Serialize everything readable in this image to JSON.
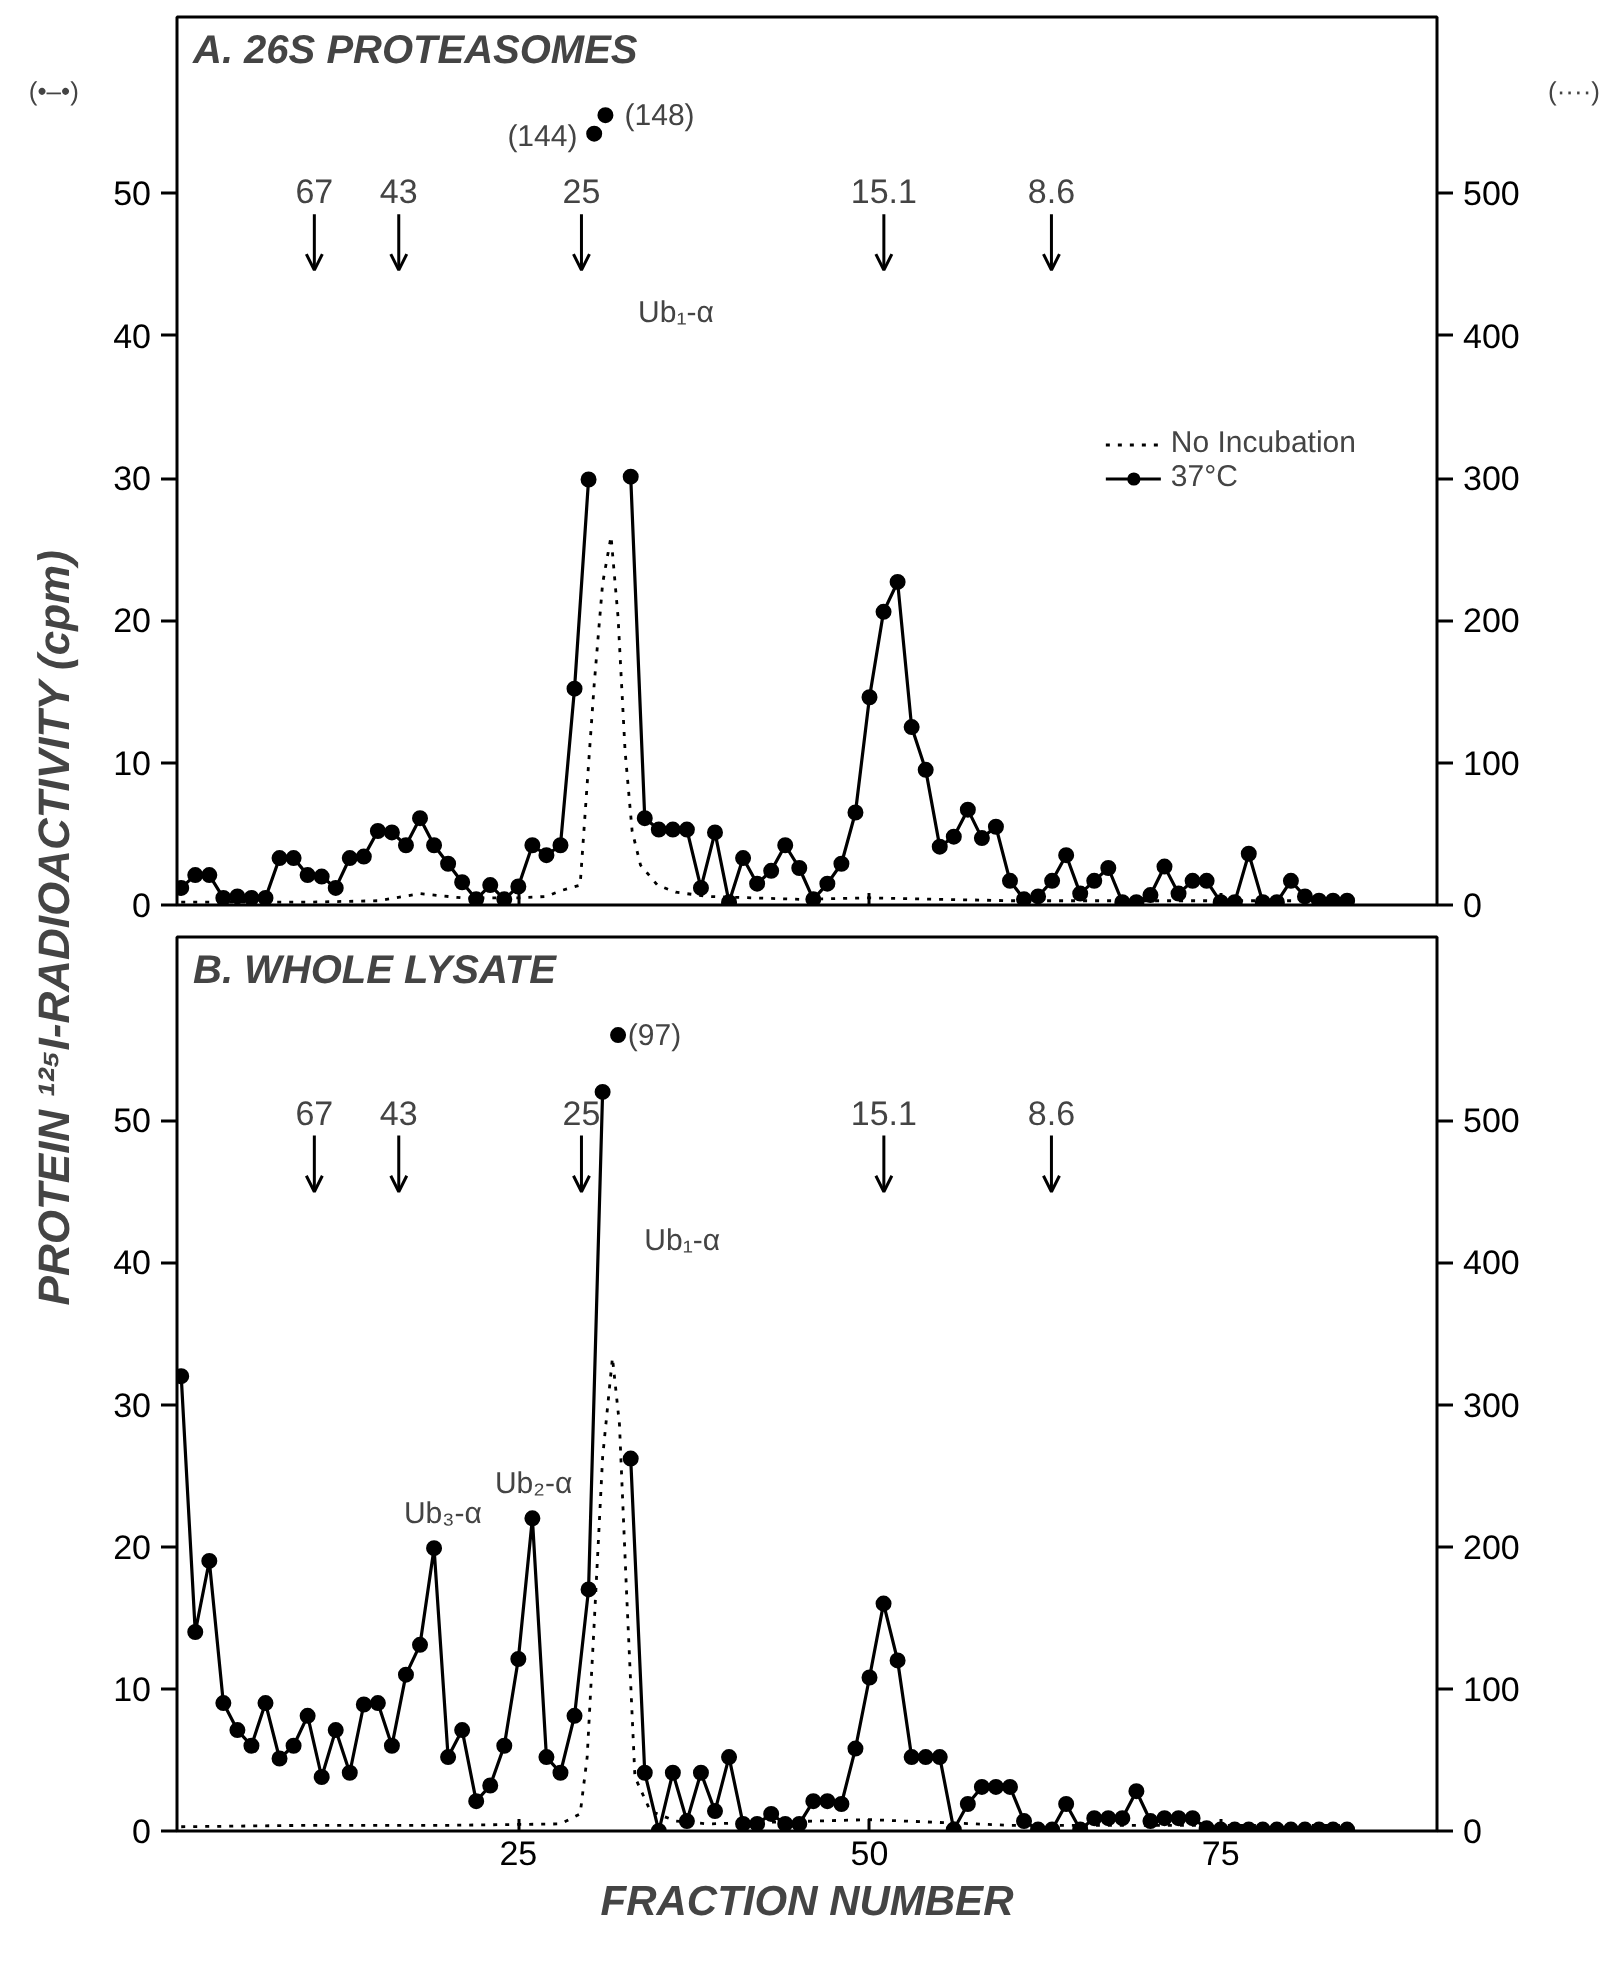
{
  "chart_data": [
    {
      "type": "line",
      "title": "A. 26S PROTEASOMES",
      "ylabel": "PROTEIN ¹²⁵I-RADIOACTIVITY (cpm)",
      "xlim": [
        0.7,
        90.4
      ],
      "ylim": [
        0,
        62.4
      ],
      "y2lim": [
        0,
        624
      ],
      "xticks": [
        25,
        50,
        75
      ],
      "yticks": [
        0,
        10,
        20,
        30,
        40,
        50
      ],
      "y2ticks": [
        0,
        100,
        200,
        300,
        400,
        500
      ],
      "tick_labels": "y",
      "legend": "right",
      "series": [
        {
          "name": "No Incubation",
          "color": "#000000",
          "axis": "y2",
          "line_style": "dotted",
          "marker": "none",
          "x": [
            1,
            5,
            10,
            15,
            18,
            21,
            25,
            27,
            28,
            29.4,
            29.9,
            30.4,
            31.0,
            31.6,
            32.1,
            32.6,
            33.1,
            33.7,
            34.9,
            36.2,
            38.5,
            45,
            50,
            60,
            70,
            84
          ],
          "values": [
            2,
            2,
            2,
            3,
            8,
            5,
            5,
            6,
            10,
            14,
            85,
            155,
            226,
            259,
            202,
            108,
            52,
            28,
            14,
            9,
            6,
            4,
            5,
            3,
            3,
            3
          ]
        },
        {
          "name": "37°C",
          "color": "#000000",
          "line_style": "solid",
          "marker": "circle",
          "x": [
            1,
            2,
            3,
            4,
            5,
            6,
            7,
            8,
            9,
            10,
            11,
            12,
            13,
            14,
            15,
            16,
            17,
            18,
            19,
            20,
            21,
            22,
            23,
            24,
            25,
            26,
            27,
            28,
            29,
            30,
            31,
            32,
            33,
            34,
            35,
            36,
            37,
            38,
            39,
            40,
            41,
            42,
            43,
            44,
            45,
            46,
            47,
            48,
            49,
            50,
            51,
            52,
            53,
            54,
            55,
            56,
            57,
            58,
            59,
            60,
            61,
            62,
            63,
            64,
            65,
            66,
            67,
            68,
            69,
            70,
            71,
            72,
            73,
            74,
            75,
            76,
            77,
            78,
            79,
            80,
            81,
            82,
            83,
            84
          ],
          "values": [
            1.2,
            2.1,
            2.1,
            0.5,
            0.6,
            0.5,
            0.5,
            3.3,
            3.3,
            2.1,
            2.0,
            1.2,
            3.3,
            3.4,
            5.2,
            5.1,
            4.2,
            6.1,
            4.2,
            2.9,
            1.6,
            0.4,
            1.4,
            0.4,
            1.3,
            4.2,
            3.5,
            4.2,
            15.2,
            29.9,
            null,
            null,
            30.1,
            6.1,
            5.3,
            5.3,
            5.3,
            1.2,
            5.1,
            0.2,
            3.3,
            1.5,
            2.4,
            4.2,
            2.6,
            0.4,
            1.5,
            2.9,
            6.5,
            14.6,
            20.6,
            22.7,
            12.5,
            9.5,
            4.1,
            4.8,
            6.7,
            4.7,
            5.5,
            1.7,
            0.4,
            0.6,
            1.7,
            3.5,
            0.8,
            1.7,
            2.6,
            0.2,
            0.2,
            0.7,
            2.7,
            0.8,
            1.7,
            1.7,
            0.2,
            0.2,
            3.6,
            0.2,
            0.2,
            1.7,
            0.6,
            0.3,
            0.3,
            0.3
          ]
        },
        {
          "type": "scatter",
          "color": "#000000",
          "marker": "circle",
          "x": [
            30.4,
            31.2
          ],
          "values": [
            54.2,
            55.5
          ]
        }
      ],
      "annotations": [
        "(•–•)",
        "(····)",
        "67",
        "43",
        "25",
        "15.1",
        "8.6",
        "(144)",
        "(148)",
        "Ub₁-α"
      ]
    },
    {
      "type": "line",
      "title": "B. WHOLE LYSATE",
      "xlabel": "FRACTION NUMBER",
      "xlim": [
        0.7,
        90.4
      ],
      "ylim": [
        0,
        62.9
      ],
      "y2lim": [
        0,
        629
      ],
      "xticks": [
        25,
        50,
        75
      ],
      "yticks": [
        0,
        10,
        20,
        30,
        40,
        50
      ],
      "y2ticks": [
        0,
        100,
        200,
        300,
        400,
        500
      ],
      "series": [
        {
          "color": "#000000",
          "axis": "y2",
          "line_style": "dotted",
          "marker": "none",
          "x": [
            1,
            10,
            20,
            28,
            29.4,
            29.9,
            30.4,
            31.0,
            31.7,
            32.2,
            32.7,
            33.3,
            34.4,
            36.2,
            38.5,
            50,
            60,
            70,
            84
          ],
          "values": [
            3,
            4,
            4,
            5,
            12,
            52,
            146,
            263,
            333,
            286,
            169,
            38,
            14,
            7,
            5,
            8,
            4,
            4,
            4
          ]
        },
        {
          "color": "#000000",
          "line_style": "solid",
          "marker": "circle",
          "x": [
            1,
            2,
            3,
            4,
            5,
            6,
            7,
            8,
            9,
            10,
            11,
            12,
            13,
            14,
            15,
            16,
            17,
            18,
            19,
            20,
            21,
            22,
            23,
            24,
            25,
            26,
            27,
            28,
            29,
            30,
            31,
            32,
            33,
            34,
            35,
            36,
            37,
            38,
            39,
            40,
            41,
            42,
            43,
            44,
            45,
            46,
            47,
            48,
            49,
            50,
            51,
            52,
            53,
            54,
            55,
            56,
            57,
            58,
            59,
            60,
            61,
            62,
            63,
            64,
            65,
            66,
            67,
            68,
            69,
            70,
            71,
            72,
            73,
            74,
            75,
            76,
            77,
            78,
            79,
            80,
            81,
            82,
            83,
            84
          ],
          "values": [
            32.0,
            14.0,
            19.0,
            9.0,
            7.1,
            6.0,
            9.0,
            5.1,
            6.0,
            8.1,
            3.8,
            7.1,
            4.1,
            8.9,
            9.0,
            6.0,
            11.0,
            13.1,
            19.9,
            5.2,
            7.1,
            2.1,
            3.2,
            6.0,
            12.1,
            22.0,
            5.2,
            4.1,
            8.1,
            17.0,
            52.0,
            null,
            26.2,
            4.1,
            0,
            4.1,
            0.7,
            4.1,
            1.4,
            5.2,
            0.5,
            0.5,
            1.2,
            0.5,
            0.5,
            2.1,
            2.1,
            1.9,
            5.8,
            10.8,
            16.0,
            12.0,
            5.2,
            5.2,
            5.2,
            0.1,
            1.9,
            3.1,
            3.1,
            3.1,
            0.7,
            0.1,
            0.1,
            1.9,
            0.1,
            0.9,
            0.9,
            0.9,
            2.8,
            0.7,
            0.9,
            0.9,
            0.9,
            0.2,
            0.1,
            0.1,
            0.1,
            0.1,
            0.1,
            0.1,
            0.1,
            0.1,
            0.1,
            0.1
          ]
        },
        {
          "type": "scatter",
          "color": "#000000",
          "marker": "circle",
          "x": [
            32.1
          ],
          "values": [
            56.0
          ]
        }
      ],
      "annotations": [
        "67",
        "43",
        "25",
        "15.1",
        "8.6",
        "(97)",
        "Ub₁-α",
        "Ub₂-α",
        "Ub₃-α"
      ]
    }
  ]
}
